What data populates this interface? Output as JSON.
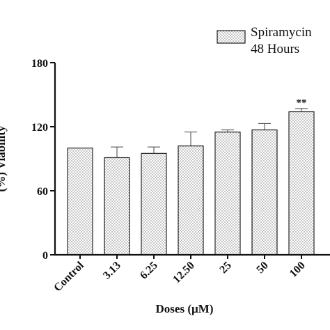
{
  "chart_data": {
    "type": "bar",
    "categories": [
      "Control",
      "3.13",
      "6.25",
      "12.50",
      "25",
      "50",
      "100"
    ],
    "series": [
      {
        "name": "Spiramycin 48 Hours",
        "values": [
          100,
          91,
          95,
          102,
          115,
          117,
          134
        ],
        "errors": [
          0,
          10,
          6,
          13,
          2,
          6,
          3
        ],
        "pattern": "dotted"
      }
    ],
    "annotations": [
      {
        "category": "100",
        "text": "**"
      }
    ],
    "legend": {
      "line1": "Spiramycin",
      "line2": "48 Hours",
      "placement": "top-right"
    },
    "xlabel": "Doses (µM)",
    "ylabel": "(%) Viability",
    "ylim": [
      0,
      180
    ],
    "yticks": [
      "0",
      "60",
      "120",
      "180"
    ],
    "grid": false
  }
}
